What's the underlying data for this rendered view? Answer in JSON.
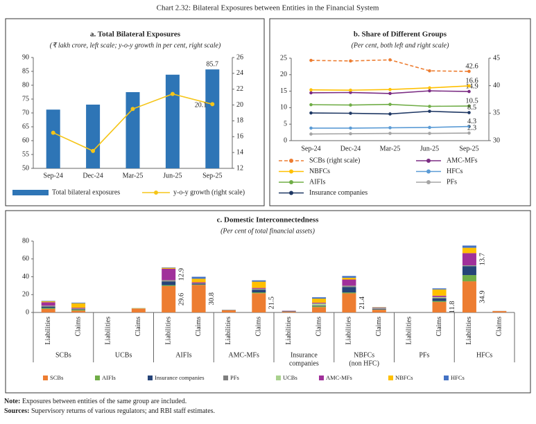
{
  "title": "Chart 2.32: Bilateral Exposures between Entities in the Financial System",
  "note": {
    "label": "Note:",
    "text": "Exposures between entities of the same group are included."
  },
  "sources": {
    "label": "Sources:",
    "text": "Supervisory returns of various regulators; and RBI staff estimates."
  },
  "chart_data": [
    {
      "type": "combo",
      "title": "a. Total Bilateral Exposures",
      "subtitle": "(₹ lakh crore, left scale; y-o-y growth in per cent, right scale)",
      "categories": [
        "Sep-24",
        "Dec-24",
        "Mar-25",
        "Jun-25",
        "Sep-25"
      ],
      "series": [
        {
          "name": "Total bilateral exposures",
          "type": "bar",
          "color": "#2e75b6",
          "label_color": "#4a7ebb",
          "values": [
            71.2,
            73.0,
            77.5,
            83.8,
            85.7
          ],
          "value_labels": [
            null,
            null,
            null,
            null,
            "85.7"
          ]
        },
        {
          "name": "y-o-y growth (right scale)",
          "type": "line",
          "axis": "y2",
          "color": "#f5c518",
          "label_color": "#444",
          "values": [
            16.5,
            14.2,
            19.5,
            21.4,
            20.1
          ],
          "value_labels": [
            null,
            null,
            null,
            null,
            "20.1"
          ]
        }
      ],
      "ylim": [
        50,
        90
      ],
      "yticks": [
        50,
        55,
        60,
        65,
        70,
        75,
        80,
        85,
        90
      ],
      "y2lim": [
        12,
        26
      ],
      "y2ticks": [
        12,
        14,
        16,
        18,
        20,
        22,
        24,
        26
      ]
    },
    {
      "type": "line",
      "title": "b. Share of Different Groups",
      "subtitle": "(Per cent, both left and right scale)",
      "categories": [
        "Sep-24",
        "Dec-24",
        "Mar-25",
        "Jun-25",
        "Sep-25"
      ],
      "series": [
        {
          "name": "SCBs (right scale)",
          "axis": "y2",
          "style": "dashed",
          "color": "#ed7d31",
          "values": [
            44.6,
            44.5,
            44.7,
            42.7,
            42.6
          ],
          "value_labels": [
            null,
            null,
            null,
            null,
            "42.6"
          ]
        },
        {
          "name": "AMC-MFs",
          "color": "#7b2c83",
          "values": [
            14.5,
            14.6,
            14.3,
            15.1,
            14.9
          ],
          "value_labels": [
            null,
            null,
            null,
            null,
            "14.9"
          ]
        },
        {
          "name": "NBFCs",
          "color": "#ffc000",
          "values": [
            15.4,
            15.3,
            15.5,
            16.0,
            16.6
          ],
          "value_labels": [
            null,
            null,
            null,
            null,
            "16.6"
          ]
        },
        {
          "name": "HFCs",
          "color": "#5b9bd5",
          "values": [
            3.8,
            3.8,
            3.9,
            4.0,
            4.3
          ],
          "value_labels": [
            null,
            null,
            null,
            null,
            "4.3"
          ]
        },
        {
          "name": "AIFIs",
          "color": "#70ad47",
          "values": [
            10.9,
            10.8,
            11.0,
            10.4,
            10.5
          ],
          "value_labels": [
            null,
            null,
            null,
            null,
            "10.5"
          ]
        },
        {
          "name": "PFs",
          "color": "#a5a5a5",
          "values": [
            2.0,
            2.1,
            2.2,
            2.2,
            2.3
          ],
          "value_labels": [
            null,
            null,
            null,
            null,
            "2.3"
          ]
        },
        {
          "name": "Insurance companies",
          "color": "#1f3864",
          "values": [
            8.4,
            8.3,
            8.1,
            8.9,
            8.5
          ],
          "value_labels": [
            null,
            null,
            null,
            null,
            "8.5"
          ]
        }
      ],
      "ylim": [
        0,
        25
      ],
      "yticks": [
        0,
        5,
        10,
        15,
        20,
        25
      ],
      "y2lim": [
        30,
        45
      ],
      "y2ticks": [
        30,
        35,
        40,
        45
      ]
    },
    {
      "type": "stacked_bar",
      "title": "c. Domestic Interconnectedness",
      "subtitle": "(Per cent of total financial assets)",
      "categories": [
        "Liabilities",
        "Claims",
        "Liabilities",
        "Claims",
        "Liabilities",
        "Claims",
        "Liabilities",
        "Claims",
        "Liabilities",
        "Claims",
        "Liabilities",
        "Claims",
        "Liabilities",
        "Claims",
        "Liabilities",
        "Claims"
      ],
      "category_groups": [
        [
          "SCBs"
        ],
        [
          "UCBs"
        ],
        [
          "AIFIs"
        ],
        [
          "AMC-MFs"
        ],
        [
          "Insurance",
          "companies"
        ],
        [
          "NBFCs",
          "(non HFC)"
        ],
        [
          "PFs"
        ],
        [
          "HFCs"
        ]
      ],
      "series": [
        {
          "name": "SCBs",
          "color": "#ed7d31",
          "values": [
            4,
            2,
            0,
            4.5,
            29.6,
            30.8,
            2.5,
            21.5,
            1,
            6,
            21.4,
            3,
            0,
            11.8,
            34.9,
            1.5
          ],
          "value_labels": [
            null,
            null,
            null,
            null,
            "29.6",
            "30.8",
            null,
            "21.5",
            null,
            null,
            "21.4",
            null,
            null,
            "11.8",
            "34.9",
            null
          ]
        },
        {
          "name": "AIFIs",
          "color": "#70ad47",
          "values": [
            1,
            1,
            0,
            0,
            1,
            0.5,
            0,
            1,
            0,
            1,
            1,
            0.3,
            0,
            1,
            7,
            0
          ]
        },
        {
          "name": "Insurance companies",
          "color": "#264478",
          "values": [
            1.5,
            0.5,
            0,
            0,
            4,
            1,
            0,
            3,
            0.5,
            0.5,
            6,
            0.7,
            0,
            3,
            10,
            0
          ]
        },
        {
          "name": "PFs",
          "color": "#7f7f7f",
          "values": [
            0.5,
            0.3,
            0,
            0,
            1,
            0.3,
            0.5,
            0.5,
            0.3,
            0.5,
            1,
            0.5,
            0,
            0.5,
            0.5,
            0.2
          ]
        },
        {
          "name": "UCBs",
          "color": "#a9d18e",
          "values": [
            0.5,
            0.5,
            0,
            0.5,
            0.5,
            0.2,
            0,
            0.5,
            0,
            2,
            0.5,
            0.5,
            0,
            1,
            0.4,
            0
          ]
        },
        {
          "name": "AMC-MFs",
          "color": "#a0309a",
          "values": [
            4,
            1,
            0,
            0,
            12.9,
            1,
            0,
            1,
            0.2,
            1,
            7,
            0.5,
            0,
            1.5,
            13.7,
            0
          ],
          "value_labels": [
            null,
            null,
            null,
            null,
            "12.9",
            null,
            null,
            null,
            null,
            null,
            null,
            null,
            null,
            null,
            "13.7",
            null
          ]
        },
        {
          "name": "NBFCs",
          "color": "#ffc000",
          "values": [
            1,
            5,
            0,
            0,
            1,
            4,
            0,
            7,
            0,
            4.5,
            2,
            0.3,
            0,
            7,
            6,
            0
          ]
        },
        {
          "name": "HFCs",
          "color": "#4472c4",
          "values": [
            0.5,
            0.7,
            0,
            0,
            0.5,
            2.2,
            0,
            1.5,
            0,
            1.5,
            2,
            0.2,
            0,
            1.2,
            2.5,
            0
          ]
        }
      ],
      "ylim": [
        0,
        80
      ],
      "yticks": [
        0,
        20,
        40,
        60,
        80
      ]
    }
  ]
}
